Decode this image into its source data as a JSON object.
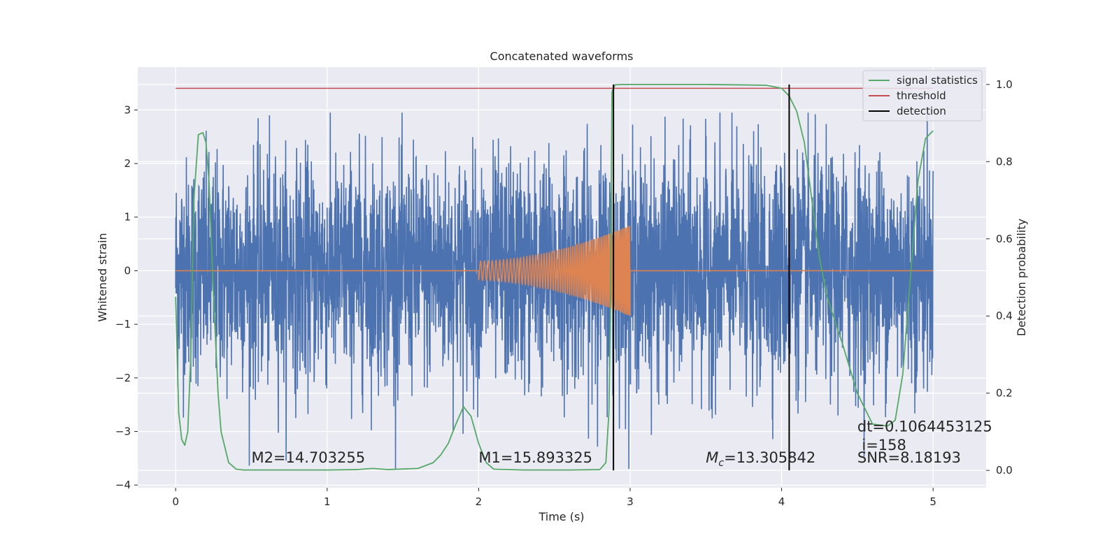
{
  "chart_data": {
    "type": "line",
    "title": "Concatenated waveforms",
    "xlabel": "Time (s)",
    "ylabel": "Whitened strain",
    "y2label": "Detection probability",
    "xlim": [
      -0.25,
      5.35
    ],
    "ylim": [
      -4.05,
      3.8
    ],
    "y2lim": [
      -0.045,
      1.045
    ],
    "xticks": [
      "0",
      "1",
      "2",
      "3",
      "4",
      "5"
    ],
    "yticks": [
      "3",
      "2",
      "1",
      "0",
      "−1",
      "−2",
      "−3",
      "−4"
    ],
    "y2ticks": [
      "1.0",
      "0.8",
      "0.6",
      "0.4",
      "0.2",
      "0.0"
    ],
    "grid": true,
    "legend_position": "top-right",
    "colors": {
      "strain": "#4c72b0",
      "template": "#dd8452",
      "statistic": "#55a868",
      "threshold": "#c44e52",
      "detection": "#000000",
      "axes_bg": "#eaeaf2",
      "grid": "#ffffff"
    },
    "series": [
      {
        "name": "signal statistics",
        "axis": "right",
        "x": [
          0.0,
          0.02,
          0.04,
          0.06,
          0.08,
          0.1,
          0.12,
          0.15,
          0.18,
          0.2,
          0.22,
          0.25,
          0.28,
          0.3,
          0.35,
          0.4,
          0.45,
          0.5,
          0.6,
          0.8,
          1.0,
          1.2,
          1.3,
          1.4,
          1.6,
          1.7,
          1.75,
          1.8,
          1.85,
          1.9,
          1.95,
          2.0,
          2.05,
          2.1,
          2.3,
          2.6,
          2.8,
          2.84,
          2.86,
          2.87,
          2.88,
          2.9,
          2.95,
          3.0,
          3.5,
          3.9,
          4.0,
          4.05,
          4.1,
          4.15,
          4.2,
          4.25,
          4.3,
          4.4,
          4.5,
          4.6,
          4.7,
          4.75,
          4.8,
          4.85,
          4.9,
          4.95,
          5.0
        ],
        "y": [
          0.45,
          0.15,
          0.08,
          0.065,
          0.1,
          0.3,
          0.7,
          0.87,
          0.875,
          0.85,
          0.75,
          0.45,
          0.2,
          0.1,
          0.02,
          0.003,
          0.001,
          0.001,
          0.001,
          0.001,
          0.001,
          0.002,
          0.005,
          0.002,
          0.005,
          0.02,
          0.04,
          0.07,
          0.12,
          0.165,
          0.14,
          0.07,
          0.02,
          0.003,
          0.001,
          0.001,
          0.002,
          0.02,
          0.15,
          0.4,
          0.98,
          0.999,
          1.0,
          1.0,
          1.0,
          0.998,
          0.99,
          0.97,
          0.93,
          0.85,
          0.7,
          0.55,
          0.45,
          0.33,
          0.2,
          0.12,
          0.115,
          0.13,
          0.25,
          0.5,
          0.75,
          0.86,
          0.88
        ]
      },
      {
        "name": "threshold",
        "axis": "right",
        "x": [
          0,
          5
        ],
        "y": [
          0.99,
          0.99
        ]
      },
      {
        "name": "detection",
        "axis": "right",
        "type": "vlines",
        "x": [
          2.89,
          4.05
        ],
        "y": [
          0,
          1.0
        ]
      },
      {
        "name": "",
        "axis": "left",
        "description_kind": "noise strain",
        "x_range": [
          0,
          5
        ],
        "approx_amplitude": 1.1,
        "peak_range": [
          -3.7,
          2.95
        ]
      },
      {
        "name": "",
        "axis": "left",
        "description_kind": "template chirp",
        "x_range": [
          2.0,
          3.0
        ],
        "amplitude_start": 0.18,
        "amplitude_end": 0.85,
        "baseline": 0
      }
    ],
    "annotations": [
      {
        "text": "M2=14.703255",
        "x": 0.5,
        "y": -3.5
      },
      {
        "text": "M1=15.893325",
        "x": 2.0,
        "y": -3.5
      },
      {
        "text_prefix": "M",
        "text_sub": "c",
        "text_suffix": "=13.305842",
        "x": 3.5,
        "y": -3.5
      },
      {
        "text": "dt=0.1064453125",
        "x": 4.5,
        "y": -2.92
      },
      {
        "text": "i=158",
        "x": 4.53,
        "y": -3.27
      },
      {
        "text": "SNR=8.18193",
        "x": 4.5,
        "y": -3.5
      }
    ]
  }
}
